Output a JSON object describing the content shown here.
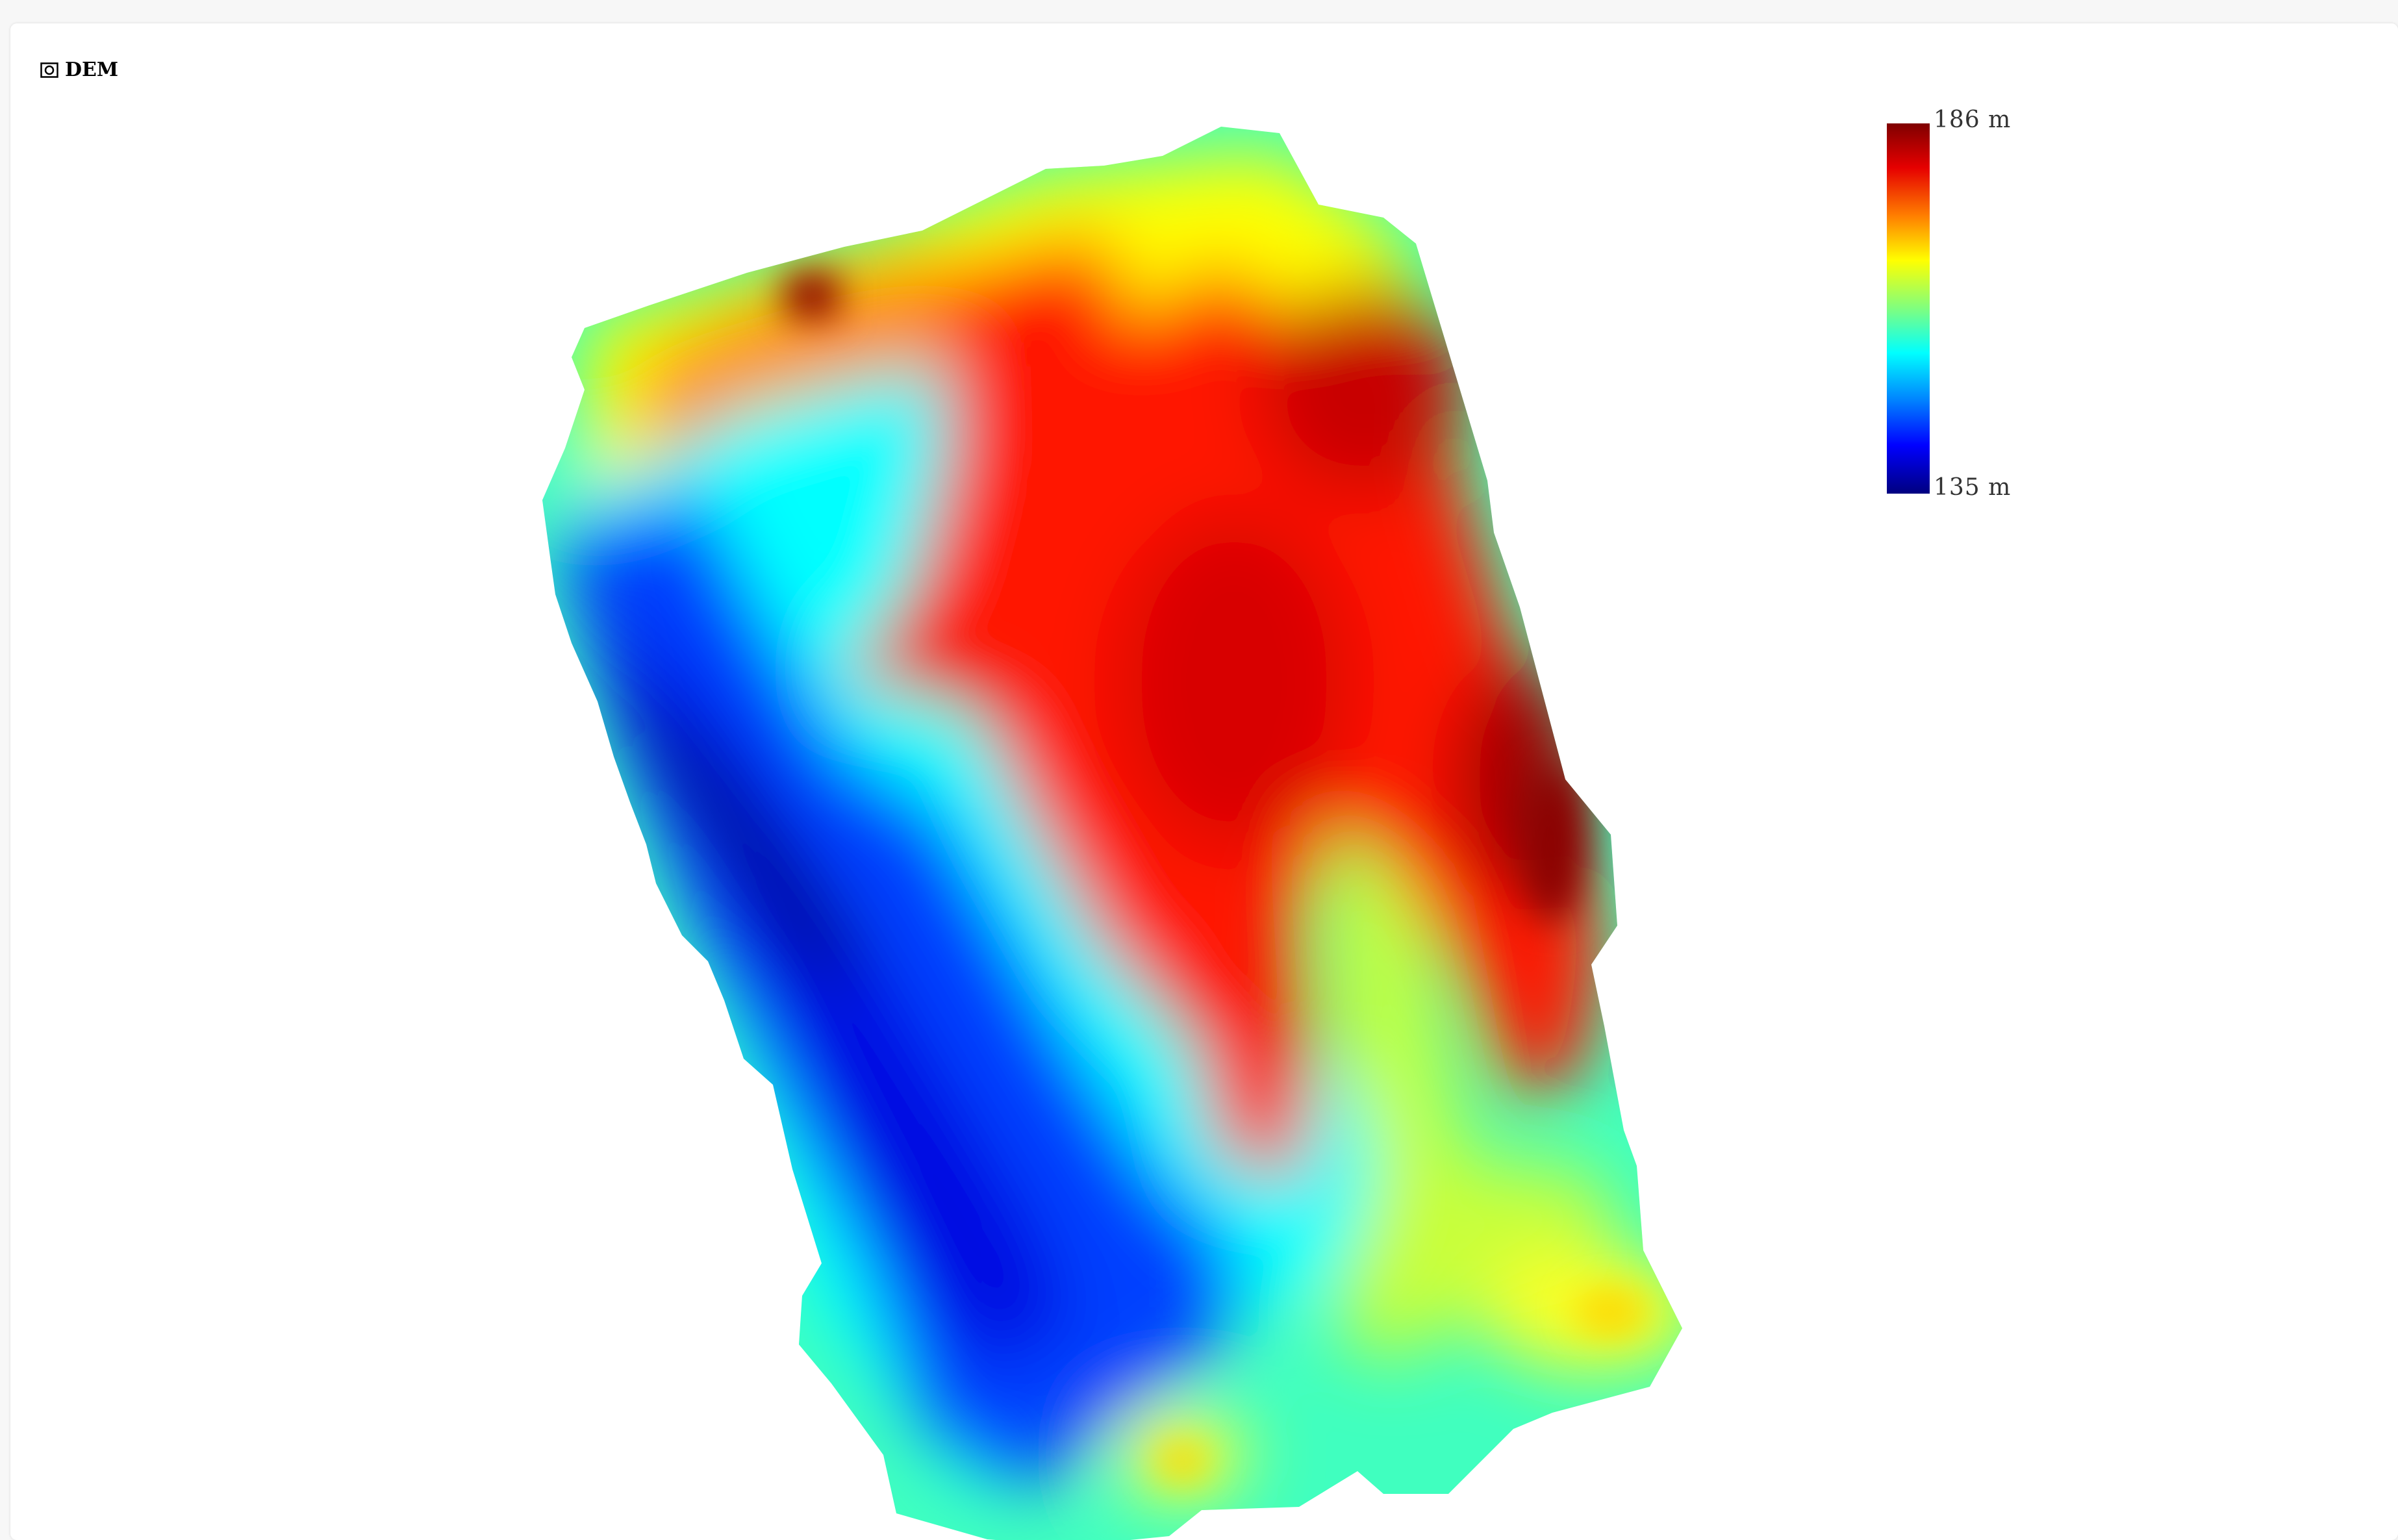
{
  "layer": {
    "title": "DEM",
    "icon": "raster-layer-icon"
  },
  "legend": {
    "max_label": "186  m",
    "min_label": "135  m",
    "max_value": 186,
    "min_value": 135,
    "unit": "m",
    "colormap": "jet"
  },
  "colors": {
    "background": "#f7f7f7",
    "panel": "#ffffff"
  }
}
